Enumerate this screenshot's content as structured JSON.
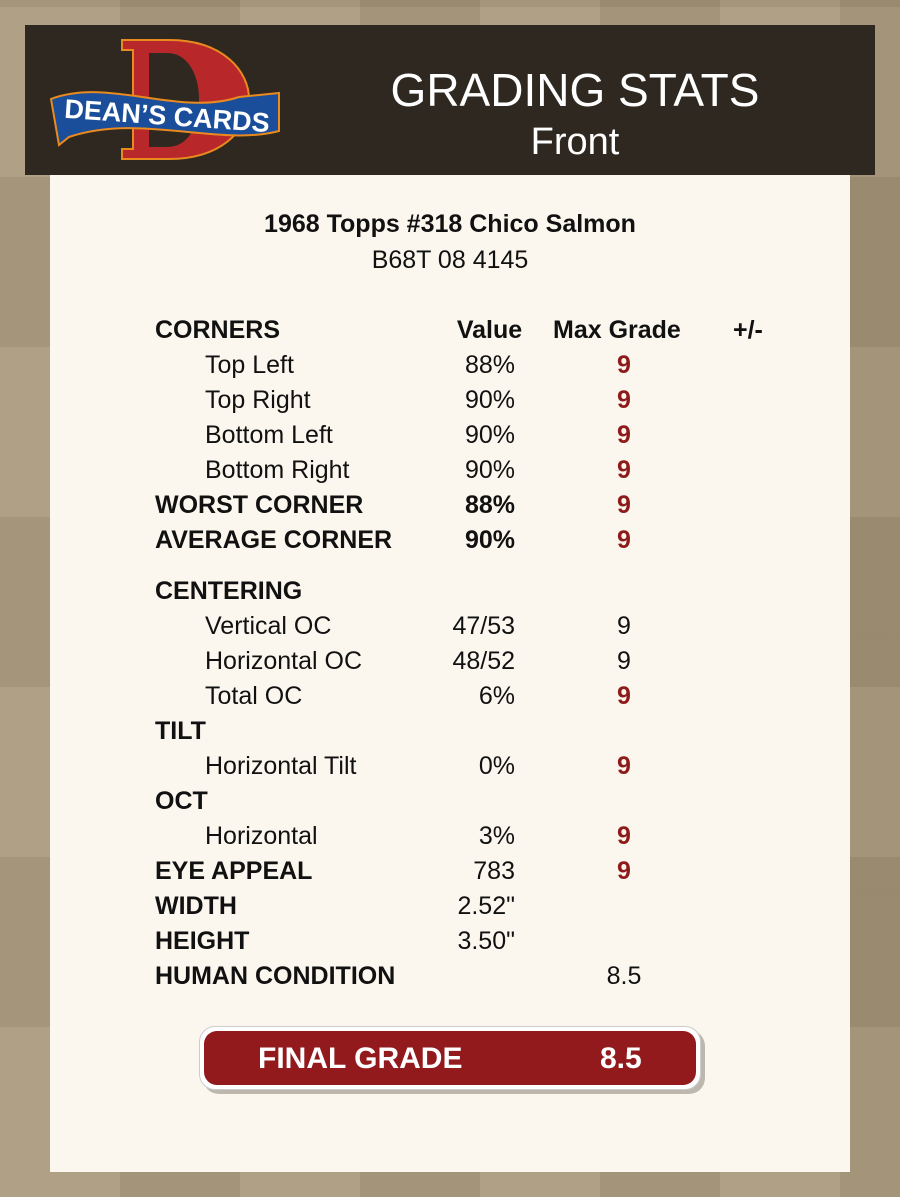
{
  "header": {
    "logo_text": "DEAN'S CARDS",
    "title": "GRADING STATS",
    "subtitle": "Front"
  },
  "card": {
    "name": "1968 Topps #318 Chico Salmon",
    "cert": "B68T 08 4145"
  },
  "columns": {
    "value": "Value",
    "max_grade": "Max Grade",
    "plus_minus": "+/-"
  },
  "rows": [
    {
      "label": "CORNERS",
      "bold": true,
      "header": true
    },
    {
      "label": "Top Left",
      "indent": true,
      "value": "88%",
      "max": "9",
      "red": true
    },
    {
      "label": "Top Right",
      "indent": true,
      "value": "90%",
      "max": "9",
      "red": true
    },
    {
      "label": "Bottom Left",
      "indent": true,
      "value": "90%",
      "max": "9",
      "red": true
    },
    {
      "label": "Bottom Right",
      "indent": true,
      "value": "90%",
      "max": "9",
      "red": true
    },
    {
      "label": "WORST CORNER",
      "bold": true,
      "value": "88%",
      "max": "9",
      "red": true
    },
    {
      "label": "AVERAGE CORNER",
      "bold": true,
      "value": "90%",
      "max": "9",
      "red": true
    },
    {
      "label": "CENTERING",
      "bold": true,
      "gap": true
    },
    {
      "label": "Vertical OC",
      "indent": true,
      "value": "47/53",
      "max": "9",
      "red": false
    },
    {
      "label": "Horizontal OC",
      "indent": true,
      "value": "48/52",
      "max": "9",
      "red": false
    },
    {
      "label": "Total OC",
      "indent": true,
      "value": "6%",
      "max": "9",
      "red": true
    },
    {
      "label": "TILT",
      "bold": true
    },
    {
      "label": "Horizontal Tilt",
      "indent": true,
      "value": "0%",
      "max": "9",
      "red": true
    },
    {
      "label": "OCT",
      "bold": true
    },
    {
      "label": "Horizontal",
      "indent": true,
      "value": "3%",
      "max": "9",
      "red": true
    },
    {
      "label": "EYE APPEAL",
      "bold": true,
      "value": "783",
      "max": "9",
      "red": true
    },
    {
      "label": "WIDTH",
      "bold": true,
      "value": "2.52\""
    },
    {
      "label": "HEIGHT",
      "bold": true,
      "value": "3.50\""
    },
    {
      "label": "HUMAN CONDITION",
      "bold": true,
      "max": "8.5",
      "red": false
    }
  ],
  "final": {
    "label": "FINAL GRADE",
    "value": "8.5"
  },
  "colors": {
    "accent": "#921a1d",
    "header_bg": "#2e2820",
    "card_bg": "#fcf7ee"
  }
}
